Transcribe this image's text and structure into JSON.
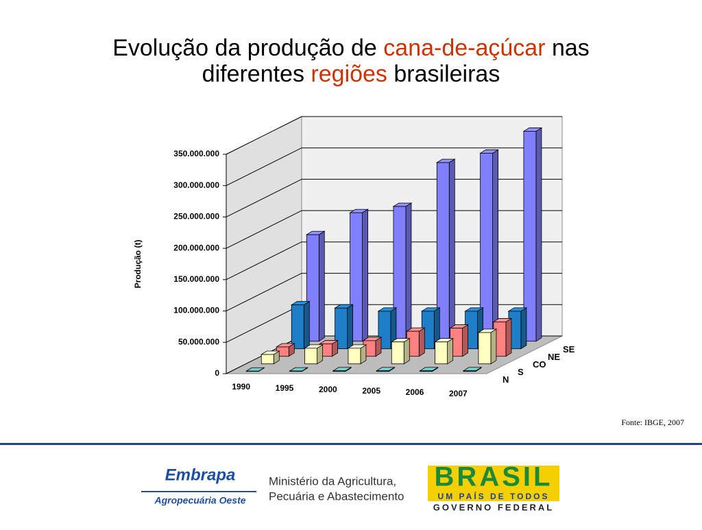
{
  "title_segments": [
    {
      "text": "Evolução da produção de ",
      "color": "#000000"
    },
    {
      "text": "cana-de-açúcar",
      "color": "#cc3300"
    },
    {
      "text": " nas",
      "color": "#000000"
    },
    {
      "text": "diferentes ",
      "color": "#000000"
    },
    {
      "text": "regiões",
      "color": "#cc3300"
    },
    {
      "text": " brasileiras",
      "color": "#000000"
    }
  ],
  "chart_data": {
    "type": "bar3d",
    "y_label": "Produção (t)",
    "source": "Fonte: IBGE, 2007",
    "categories": [
      "1990",
      "1995",
      "2000",
      "2005",
      "2006",
      "2007"
    ],
    "series": [
      {
        "name": "N",
        "color": "#66b3b3",
        "values": [
          500000,
          600000,
          1000000,
          1000000,
          1000000,
          1000000
        ]
      },
      {
        "name": "S",
        "color": "#ffffc0",
        "values": [
          15000000,
          25000000,
          25000000,
          35000000,
          35000000,
          50000000
        ]
      },
      {
        "name": "CO",
        "color": "#ff8080",
        "values": [
          15000000,
          20000000,
          25000000,
          40000000,
          45000000,
          55000000
        ]
      },
      {
        "name": "NE",
        "color": "#1e7fc8",
        "values": [
          70000000,
          65000000,
          60000000,
          60000000,
          60000000,
          60000000
        ]
      },
      {
        "name": "SE",
        "color": "#8080ff",
        "values": [
          170000000,
          205000000,
          215000000,
          285000000,
          300000000,
          335000000
        ]
      }
    ],
    "ylim": [
      0,
      350000000
    ],
    "yticks": [
      0,
      {
        "value": 50000000,
        "label": "50.000.000"
      },
      {
        "value": 100000000,
        "label": "100.000.000"
      },
      {
        "value": 150000000,
        "label": "150.000.000"
      },
      {
        "value": 200000000,
        "label": "200.000.000"
      },
      {
        "value": 250000000,
        "label": "250.000.000"
      },
      {
        "value": 300000000,
        "label": "300.000.000"
      },
      {
        "value": 350000000,
        "label": "350.000.000"
      }
    ],
    "grid": true
  },
  "footer": {
    "embrapa": "Embrapa",
    "embrapa_unit": "Agropecuária Oeste",
    "ministry_line1": "Ministério da Agricultura,",
    "ministry_line2": "Pecuária e Abastecimento",
    "brasil": "BRASIL",
    "brasil_slogan": "UM PAÍS DE TODOS",
    "government": "GOVERNO FEDERAL"
  }
}
